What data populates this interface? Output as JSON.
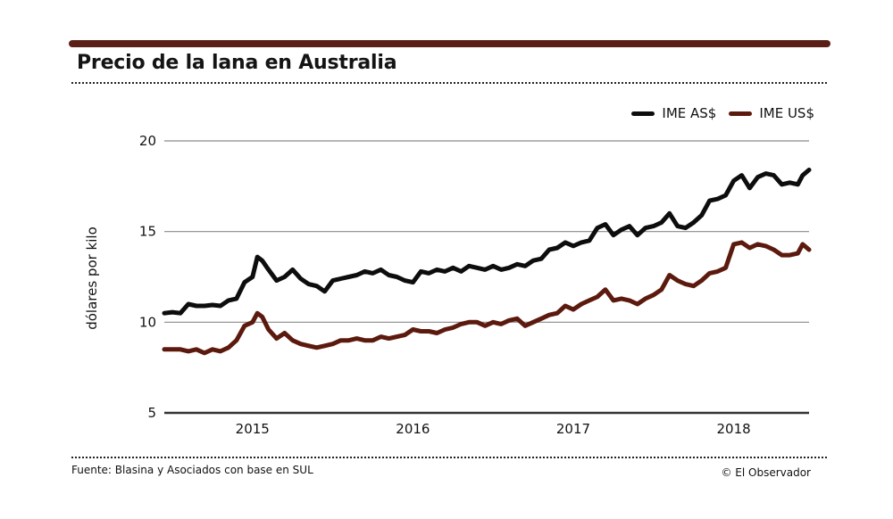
{
  "header": {
    "title": "Precio de la lana en Australia"
  },
  "footer": {
    "source": "Fuente: Blasina y Asociados con base en SUL",
    "credit": "© El Observador"
  },
  "colors": {
    "accent_bar": "#5a1f17",
    "series_as": "#0d0d0d",
    "series_us": "#5c1a0e",
    "grid": "#8a8a8a"
  },
  "chart_data": {
    "type": "line",
    "title": "Precio de la lana en Australia",
    "xlabel": "",
    "ylabel": "dólares por kilo",
    "ylim": [
      5,
      20
    ],
    "xlim": [
      2014.45,
      2018.47
    ],
    "yticks": [
      20,
      15,
      10,
      5
    ],
    "xticks": [
      {
        "value": 2015,
        "label": "2015"
      },
      {
        "value": 2016,
        "label": "2016"
      },
      {
        "value": 2017,
        "label": "2017"
      },
      {
        "value": 2018,
        "label": "2018"
      }
    ],
    "legend_position": "top-right",
    "series": [
      {
        "name": "IME AS$",
        "color": "#0d0d0d",
        "x": [
          2014.45,
          2014.5,
          2014.55,
          2014.6,
          2014.65,
          2014.7,
          2014.75,
          2014.8,
          2014.85,
          2014.9,
          2014.95,
          2015.0,
          2015.03,
          2015.06,
          2015.1,
          2015.15,
          2015.2,
          2015.25,
          2015.3,
          2015.35,
          2015.4,
          2015.45,
          2015.5,
          2015.55,
          2015.6,
          2015.65,
          2015.7,
          2015.75,
          2015.8,
          2015.85,
          2015.9,
          2015.95,
          2016.0,
          2016.05,
          2016.1,
          2016.15,
          2016.2,
          2016.25,
          2016.3,
          2016.35,
          2016.4,
          2016.45,
          2016.5,
          2016.55,
          2016.6,
          2016.65,
          2016.7,
          2016.75,
          2016.8,
          2016.85,
          2016.9,
          2016.95,
          2017.0,
          2017.05,
          2017.1,
          2017.15,
          2017.2,
          2017.25,
          2017.3,
          2017.35,
          2017.4,
          2017.45,
          2017.5,
          2017.55,
          2017.6,
          2017.65,
          2017.7,
          2017.75,
          2017.8,
          2017.85,
          2017.9,
          2017.95,
          2018.0,
          2018.05,
          2018.1,
          2018.15,
          2018.2,
          2018.25,
          2018.3,
          2018.35,
          2018.4,
          2018.43,
          2018.47
        ],
        "values": [
          10.5,
          10.55,
          10.5,
          11.0,
          10.9,
          10.9,
          10.95,
          10.9,
          11.2,
          11.3,
          12.2,
          12.5,
          13.6,
          13.4,
          12.9,
          12.3,
          12.5,
          12.9,
          12.4,
          12.1,
          12.0,
          11.7,
          12.3,
          12.4,
          12.5,
          12.6,
          12.8,
          12.7,
          12.9,
          12.6,
          12.5,
          12.3,
          12.2,
          12.8,
          12.7,
          12.9,
          12.8,
          13.0,
          12.8,
          13.1,
          13.0,
          12.9,
          13.1,
          12.9,
          13.0,
          13.2,
          13.1,
          13.4,
          13.5,
          14.0,
          14.1,
          14.4,
          14.2,
          14.4,
          14.5,
          15.2,
          15.4,
          14.8,
          15.1,
          15.3,
          14.8,
          15.2,
          15.3,
          15.5,
          16.0,
          15.3,
          15.2,
          15.5,
          15.9,
          16.7,
          16.8,
          17.0,
          17.8,
          18.1,
          17.4,
          18.0,
          18.2,
          18.1,
          17.6,
          17.7,
          17.6,
          18.1,
          18.4
        ]
      },
      {
        "name": "IME US$",
        "color": "#5c1a0e",
        "x": [
          2014.45,
          2014.5,
          2014.55,
          2014.6,
          2014.65,
          2014.7,
          2014.75,
          2014.8,
          2014.85,
          2014.9,
          2014.95,
          2015.0,
          2015.03,
          2015.06,
          2015.1,
          2015.15,
          2015.2,
          2015.25,
          2015.3,
          2015.35,
          2015.4,
          2015.45,
          2015.5,
          2015.55,
          2015.6,
          2015.65,
          2015.7,
          2015.75,
          2015.8,
          2015.85,
          2015.9,
          2015.95,
          2016.0,
          2016.05,
          2016.1,
          2016.15,
          2016.2,
          2016.25,
          2016.3,
          2016.35,
          2016.4,
          2016.45,
          2016.5,
          2016.55,
          2016.6,
          2016.65,
          2016.7,
          2016.75,
          2016.8,
          2016.85,
          2016.9,
          2016.95,
          2017.0,
          2017.05,
          2017.1,
          2017.15,
          2017.2,
          2017.25,
          2017.3,
          2017.35,
          2017.4,
          2017.45,
          2017.5,
          2017.55,
          2017.6,
          2017.65,
          2017.7,
          2017.75,
          2017.8,
          2017.85,
          2017.9,
          2017.95,
          2018.0,
          2018.05,
          2018.1,
          2018.15,
          2018.2,
          2018.25,
          2018.3,
          2018.35,
          2018.4,
          2018.43,
          2018.47
        ],
        "values": [
          8.5,
          8.5,
          8.5,
          8.4,
          8.5,
          8.3,
          8.5,
          8.4,
          8.6,
          9.0,
          9.8,
          10.0,
          10.5,
          10.3,
          9.6,
          9.1,
          9.4,
          9.0,
          8.8,
          8.7,
          8.6,
          8.7,
          8.8,
          9.0,
          9.0,
          9.1,
          9.0,
          9.0,
          9.2,
          9.1,
          9.2,
          9.3,
          9.6,
          9.5,
          9.5,
          9.4,
          9.6,
          9.7,
          9.9,
          10.0,
          10.0,
          9.8,
          10.0,
          9.9,
          10.1,
          10.2,
          9.8,
          10.0,
          10.2,
          10.4,
          10.5,
          10.9,
          10.7,
          11.0,
          11.2,
          11.4,
          11.8,
          11.2,
          11.3,
          11.2,
          11.0,
          11.3,
          11.5,
          11.8,
          12.6,
          12.3,
          12.1,
          12.0,
          12.3,
          12.7,
          12.8,
          13.0,
          14.3,
          14.4,
          14.1,
          14.3,
          14.2,
          14.0,
          13.7,
          13.7,
          13.8,
          14.3,
          14.0
        ]
      }
    ]
  }
}
